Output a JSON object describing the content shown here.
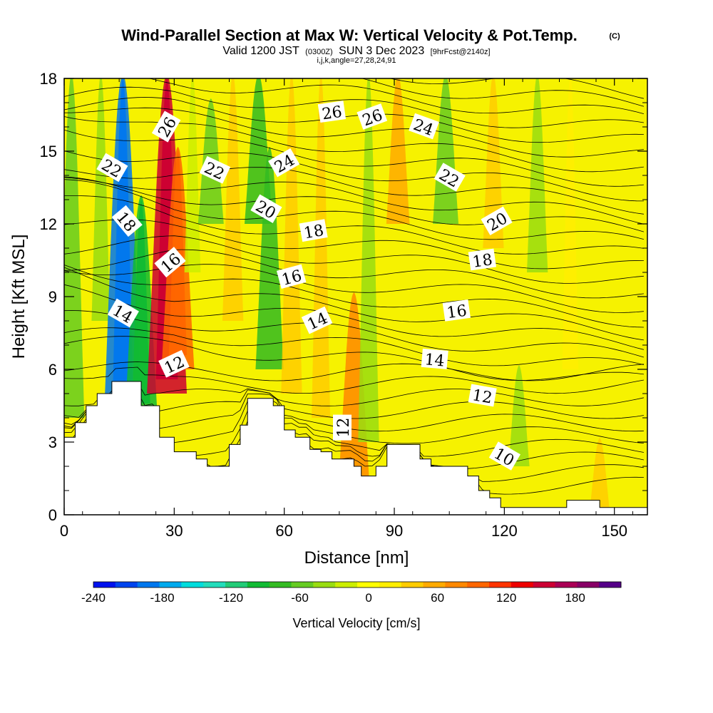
{
  "title": {
    "main": "Wind-Parallel Section at Max W: Vertical Velocity & Pot.Temp.",
    "copyright": "(C)",
    "valid_prefix": "Valid 1200 JST",
    "valid_z": "(0300Z)",
    "valid_date": "SUN 3 Dec 2023",
    "forecast": "[9hrFcst@2140z]",
    "indices": "i,j,k,angle=27,28,24,91"
  },
  "chart_data": {
    "type": "heatmap",
    "xlabel": "Distance [nm]",
    "ylabel": "Height [Kft MSL]",
    "xlim": [
      0,
      159
    ],
    "ylim": [
      0,
      18
    ],
    "xticks": [
      0,
      30,
      60,
      90,
      120,
      150
    ],
    "yticks": [
      0,
      3,
      6,
      9,
      12,
      15,
      18
    ],
    "terrain_kft": [
      [
        0,
        3.2
      ],
      [
        3,
        3.8
      ],
      [
        6,
        4.5
      ],
      [
        9,
        5.0
      ],
      [
        13,
        5.5
      ],
      [
        19,
        5.5
      ],
      [
        21,
        4.5
      ],
      [
        26,
        3.2
      ],
      [
        30,
        2.6
      ],
      [
        36,
        2.3
      ],
      [
        39,
        2.0
      ],
      [
        42,
        2.0
      ],
      [
        45,
        2.9
      ],
      [
        48,
        3.7
      ],
      [
        50,
        4.8
      ],
      [
        55,
        4.8
      ],
      [
        57,
        4.5
      ],
      [
        60,
        3.5
      ],
      [
        63,
        3.2
      ],
      [
        67,
        2.7
      ],
      [
        70,
        2.6
      ],
      [
        73,
        2.3
      ],
      [
        76,
        2.3
      ],
      [
        79,
        2.0
      ],
      [
        81,
        1.6
      ],
      [
        85,
        2.0
      ],
      [
        88,
        2.9
      ],
      [
        94,
        2.9
      ],
      [
        97,
        2.3
      ],
      [
        100,
        2.0
      ],
      [
        105,
        2.0
      ],
      [
        110,
        1.6
      ],
      [
        113,
        1.0
      ],
      [
        116,
        0.7
      ],
      [
        119,
        0.3
      ],
      [
        127,
        0.3
      ],
      [
        134,
        0.3
      ],
      [
        137,
        0.6
      ],
      [
        143,
        0.6
      ],
      [
        146,
        0.3
      ],
      [
        159,
        0.3
      ]
    ],
    "w_features": [
      {
        "x": 2,
        "y0": 4,
        "y1": 18,
        "w": -60
      },
      {
        "x": 10,
        "y0": 8,
        "y1": 18,
        "w": -30
      },
      {
        "x": 16,
        "y0": 3,
        "y1": 18,
        "w": -200
      },
      {
        "x": 21,
        "y0": 4,
        "y1": 13,
        "w": -90
      },
      {
        "x": 28,
        "y0": 5,
        "y1": 18,
        "w": 150
      },
      {
        "x": 31,
        "y0": 6,
        "y1": 15,
        "w": 90
      },
      {
        "x": 35,
        "y0": 10,
        "y1": 18,
        "w": -20
      },
      {
        "x": 40,
        "y0": 12,
        "y1": 17,
        "w": -60
      },
      {
        "x": 46,
        "y0": 8,
        "y1": 18,
        "w": 40
      },
      {
        "x": 53,
        "y0": 12,
        "y1": 18,
        "w": -70
      },
      {
        "x": 56,
        "y0": 6,
        "y1": 15,
        "w": -70
      },
      {
        "x": 62,
        "y0": 5,
        "y1": 18,
        "w": 40
      },
      {
        "x": 70,
        "y0": 4,
        "y1": 18,
        "w": 30
      },
      {
        "x": 79,
        "y0": 1.5,
        "y1": 9,
        "w": 80
      },
      {
        "x": 83,
        "y0": 3,
        "y1": 18,
        "w": -40
      },
      {
        "x": 91,
        "y0": 12,
        "y1": 18,
        "w": 50
      },
      {
        "x": 104,
        "y0": 12,
        "y1": 18,
        "w": -60
      },
      {
        "x": 117,
        "y0": 11,
        "y1": 18,
        "w": 40
      },
      {
        "x": 124,
        "y0": 2,
        "y1": 6,
        "w": -40
      },
      {
        "x": 129,
        "y0": 10,
        "y1": 18,
        "w": -40
      },
      {
        "x": 138,
        "y0": 6,
        "y1": 18,
        "w": 20
      },
      {
        "x": 146,
        "y0": 0,
        "y1": 3,
        "w": 40
      }
    ],
    "theta_levels": [
      10,
      12,
      14,
      16,
      18,
      20,
      22,
      24,
      26
    ],
    "theta_labels": [
      {
        "text": "10",
        "x": 120,
        "y": 2.4,
        "angle": 30
      },
      {
        "text": "12",
        "x": 30,
        "y": 6.2,
        "angle": -25
      },
      {
        "text": "12",
        "x": 76,
        "y": 3.6,
        "angle": -90
      },
      {
        "text": "12",
        "x": 114,
        "y": 4.9,
        "angle": 10
      },
      {
        "text": "14",
        "x": 16,
        "y": 8.3,
        "angle": 30
      },
      {
        "text": "14",
        "x": 69,
        "y": 8.0,
        "angle": -25
      },
      {
        "text": "14",
        "x": 101,
        "y": 6.4,
        "angle": 5
      },
      {
        "text": "16",
        "x": 29,
        "y": 10.4,
        "angle": -40
      },
      {
        "text": "16",
        "x": 62,
        "y": 9.8,
        "angle": -15
      },
      {
        "text": "16",
        "x": 107,
        "y": 8.4,
        "angle": -8
      },
      {
        "text": "18",
        "x": 17,
        "y": 12.1,
        "angle": 50
      },
      {
        "text": "18",
        "x": 68,
        "y": 11.7,
        "angle": -10
      },
      {
        "text": "18",
        "x": 114,
        "y": 10.5,
        "angle": -8
      },
      {
        "text": "20",
        "x": 55,
        "y": 12.6,
        "angle": 30
      },
      {
        "text": "20",
        "x": 118,
        "y": 12.1,
        "angle": -30
      },
      {
        "text": "22",
        "x": 13,
        "y": 14.3,
        "angle": 30
      },
      {
        "text": "22",
        "x": 41,
        "y": 14.2,
        "angle": 25
      },
      {
        "text": "22",
        "x": 105,
        "y": 13.9,
        "angle": 30
      },
      {
        "text": "24",
        "x": 60,
        "y": 14.5,
        "angle": -30
      },
      {
        "text": "24",
        "x": 98,
        "y": 16.0,
        "angle": 20
      },
      {
        "text": "26",
        "x": 28,
        "y": 16.0,
        "angle": -60
      },
      {
        "text": "26",
        "x": 73,
        "y": 16.6,
        "angle": -8
      },
      {
        "text": "26",
        "x": 84,
        "y": 16.4,
        "angle": -20
      }
    ]
  },
  "colorbar": {
    "label": "Vertical Velocity [cm/s]",
    "min": -240,
    "max": 220,
    "tick_labels": [
      "-240",
      "-180",
      "-120",
      "-60",
      "0",
      "60",
      "120",
      "180"
    ],
    "tick_values": [
      -240,
      -180,
      -120,
      -60,
      0,
      60,
      120,
      180
    ],
    "colors": [
      "#0011ee",
      "#0044ee",
      "#0077ee",
      "#00aaee",
      "#00dddd",
      "#22ddbb",
      "#22cc77",
      "#11bb33",
      "#33bb22",
      "#66cc22",
      "#99dd11",
      "#ccee00",
      "#ffff00",
      "#ffee00",
      "#ffcc00",
      "#ffaa00",
      "#ff8800",
      "#ff6600",
      "#ff3300",
      "#ee0000",
      "#cc0033",
      "#aa0055",
      "#880066",
      "#550088"
    ]
  }
}
